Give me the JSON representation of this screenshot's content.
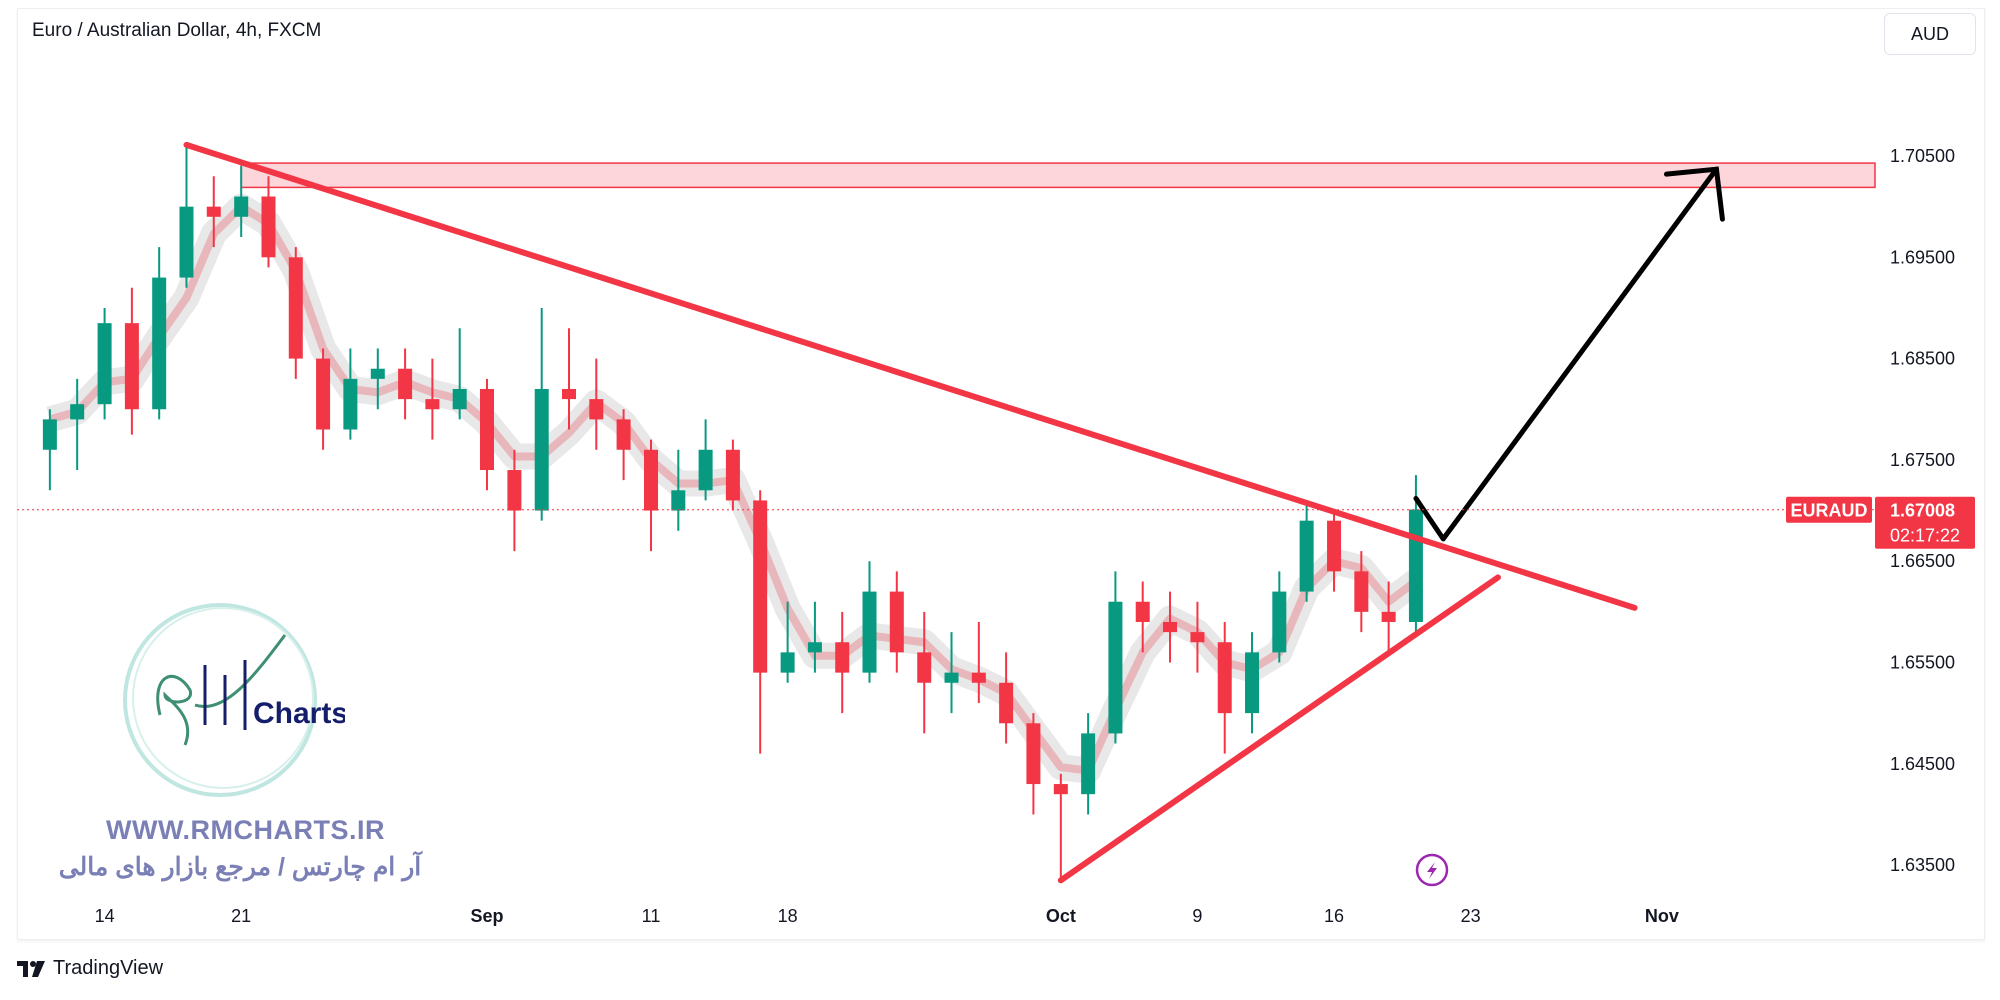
{
  "header": {
    "title": "Euro / Australian Dollar, 4h, FXCM",
    "currency_button": "AUD"
  },
  "footer": {
    "brand": "TradingView"
  },
  "watermark": {
    "logo_text": "RM Charts",
    "website": "WWW.RMCHARTS.IR",
    "tagline": "آر ام چارتس / مرجع بازار های مالی"
  },
  "colors": {
    "up": "#089981",
    "down": "#f23645",
    "trendline": "#f23645",
    "zone_fill": "#fcd6da",
    "arrow": "#000000",
    "flash_icon": "#9c27b0"
  },
  "chart_data": {
    "type": "candlestick",
    "symbol": "EURAUD",
    "interval": "4h",
    "last_price": "1.67008",
    "countdown": "02:17:22",
    "ylim": [
      1.63,
      1.712
    ],
    "price_ticks": [
      "1.70500",
      "1.69500",
      "1.68500",
      "1.67500",
      "1.66500",
      "1.65500",
      "1.64500",
      "1.63500"
    ],
    "time_ticks": [
      {
        "label": "14",
        "date": "2023-08-14"
      },
      {
        "label": "21",
        "date": "2023-08-21"
      },
      {
        "label": "Sep",
        "date": "2023-09-01",
        "bold": true
      },
      {
        "label": "11",
        "date": "2023-09-11"
      },
      {
        "label": "18",
        "date": "2023-09-18"
      },
      {
        "label": "Oct",
        "date": "2023-10-02",
        "bold": true
      },
      {
        "label": "9",
        "date": "2023-10-09"
      },
      {
        "label": "16",
        "date": "2023-10-16"
      },
      {
        "label": "23",
        "date": "2023-10-23"
      },
      {
        "label": "Nov",
        "date": "2023-11-01",
        "bold": true
      }
    ],
    "candles_fields": [
      "date",
      "open",
      "high",
      "low",
      "close"
    ],
    "candles": [
      [
        "2023-08-10",
        1.676,
        1.68,
        1.672,
        1.679
      ],
      [
        "2023-08-11",
        1.679,
        1.683,
        1.674,
        1.6805
      ],
      [
        "2023-08-14",
        1.6805,
        1.69,
        1.679,
        1.6885
      ],
      [
        "2023-08-15",
        1.6885,
        1.692,
        1.6775,
        1.68
      ],
      [
        "2023-08-16",
        1.68,
        1.696,
        1.679,
        1.693
      ],
      [
        "2023-08-17",
        1.693,
        1.706,
        1.692,
        1.7
      ],
      [
        "2023-08-18",
        1.7,
        1.703,
        1.696,
        1.699
      ],
      [
        "2023-08-21",
        1.699,
        1.704,
        1.697,
        1.701
      ],
      [
        "2023-08-22",
        1.701,
        1.703,
        1.694,
        1.695
      ],
      [
        "2023-08-23",
        1.695,
        1.696,
        1.683,
        1.685
      ],
      [
        "2023-08-24",
        1.685,
        1.686,
        1.676,
        1.678
      ],
      [
        "2023-08-25",
        1.678,
        1.686,
        1.677,
        1.683
      ],
      [
        "2023-08-28",
        1.683,
        1.686,
        1.68,
        1.684
      ],
      [
        "2023-08-29",
        1.684,
        1.686,
        1.679,
        1.681
      ],
      [
        "2023-08-30",
        1.681,
        1.685,
        1.677,
        1.68
      ],
      [
        "2023-08-31",
        1.68,
        1.688,
        1.679,
        1.682
      ],
      [
        "2023-09-01",
        1.682,
        1.683,
        1.672,
        1.674
      ],
      [
        "2023-09-04",
        1.674,
        1.676,
        1.666,
        1.67
      ],
      [
        "2023-09-05",
        1.67,
        1.69,
        1.669,
        1.682
      ],
      [
        "2023-09-06",
        1.682,
        1.688,
        1.678,
        1.681
      ],
      [
        "2023-09-07",
        1.681,
        1.685,
        1.676,
        1.679
      ],
      [
        "2023-09-08",
        1.679,
        1.68,
        1.673,
        1.676
      ],
      [
        "2023-09-11",
        1.676,
        1.677,
        1.666,
        1.67
      ],
      [
        "2023-09-12",
        1.67,
        1.676,
        1.668,
        1.672
      ],
      [
        "2023-09-13",
        1.672,
        1.679,
        1.671,
        1.676
      ],
      [
        "2023-09-14",
        1.676,
        1.677,
        1.67,
        1.671
      ],
      [
        "2023-09-15",
        1.671,
        1.672,
        1.646,
        1.654
      ],
      [
        "2023-09-18",
        1.654,
        1.661,
        1.653,
        1.656
      ],
      [
        "2023-09-19",
        1.656,
        1.661,
        1.654,
        1.657
      ],
      [
        "2023-09-20",
        1.657,
        1.66,
        1.65,
        1.654
      ],
      [
        "2023-09-21",
        1.654,
        1.665,
        1.653,
        1.662
      ],
      [
        "2023-09-22",
        1.662,
        1.664,
        1.654,
        1.656
      ],
      [
        "2023-09-25",
        1.656,
        1.66,
        1.648,
        1.653
      ],
      [
        "2023-09-26",
        1.653,
        1.658,
        1.65,
        1.654
      ],
      [
        "2023-09-27",
        1.654,
        1.659,
        1.651,
        1.653
      ],
      [
        "2023-09-28",
        1.653,
        1.656,
        1.647,
        1.649
      ],
      [
        "2023-09-29",
        1.649,
        1.65,
        1.64,
        1.643
      ],
      [
        "2023-10-02",
        1.643,
        1.644,
        1.6335,
        1.642
      ],
      [
        "2023-10-03",
        1.642,
        1.65,
        1.64,
        1.648
      ],
      [
        "2023-10-04",
        1.648,
        1.664,
        1.647,
        1.661
      ],
      [
        "2023-10-05",
        1.661,
        1.663,
        1.656,
        1.659
      ],
      [
        "2023-10-06",
        1.659,
        1.662,
        1.655,
        1.658
      ],
      [
        "2023-10-09",
        1.658,
        1.661,
        1.654,
        1.657
      ],
      [
        "2023-10-10",
        1.657,
        1.659,
        1.646,
        1.65
      ],
      [
        "2023-10-11",
        1.65,
        1.658,
        1.648,
        1.656
      ],
      [
        "2023-10-12",
        1.656,
        1.664,
        1.655,
        1.662
      ],
      [
        "2023-10-13",
        1.662,
        1.671,
        1.661,
        1.669
      ],
      [
        "2023-10-16",
        1.669,
        1.67,
        1.662,
        1.664
      ],
      [
        "2023-10-17",
        1.664,
        1.666,
        1.658,
        1.66
      ],
      [
        "2023-10-18",
        1.66,
        1.663,
        1.656,
        1.659
      ],
      [
        "2023-10-19",
        1.659,
        1.6735,
        1.658,
        1.6701
      ]
    ],
    "drawings": {
      "resistance_zone": {
        "from": "2023-08-21",
        "price_top": 1.7043,
        "price_bottom": 1.7019
      },
      "descending_trendline": [
        [
          "2023-08-17",
          1.7061
        ],
        [
          "2023-10-31",
          1.6604
        ]
      ],
      "ascending_trendline": [
        [
          "2023-10-02",
          1.6335
        ],
        [
          "2023-10-24",
          1.6634
        ]
      ],
      "projection_arrow": [
        [
          "2023-10-19",
          1.6712
        ],
        [
          "2023-10-20",
          1.6672
        ],
        [
          "2023-11-03",
          1.7037
        ]
      ]
    }
  }
}
